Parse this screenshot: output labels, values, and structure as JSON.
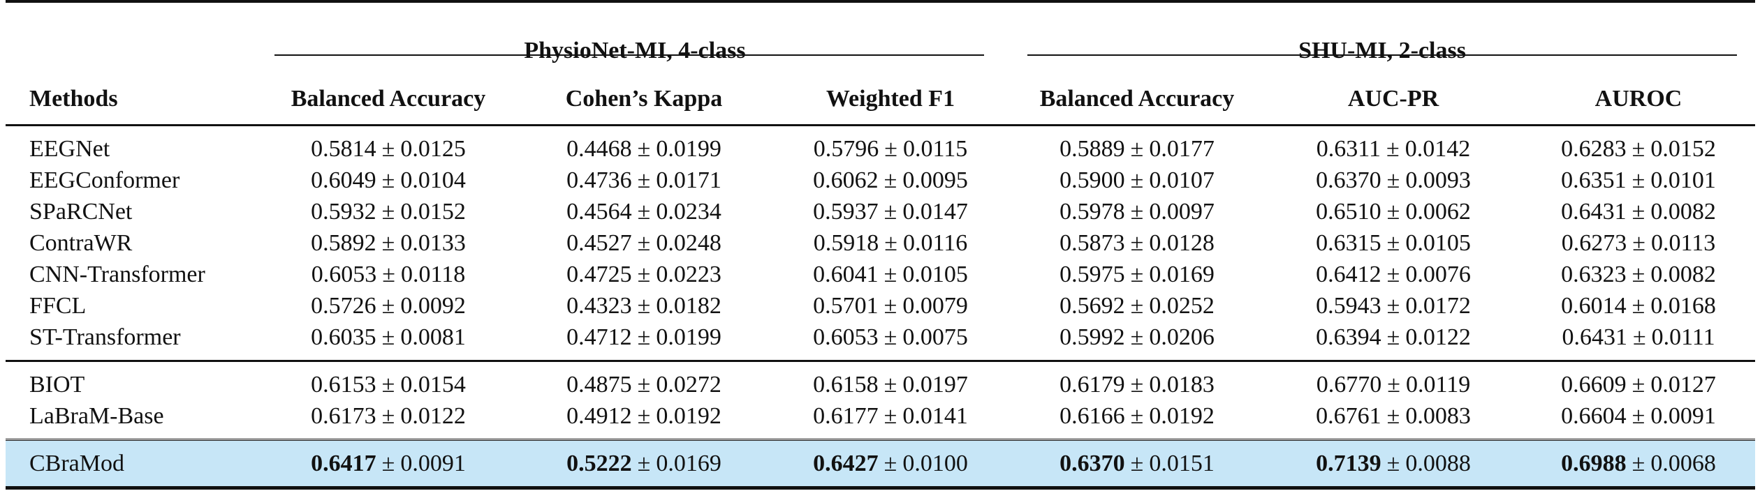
{
  "table": {
    "group_headers": [
      {
        "label": "PhysioNet-MI, 4-class"
      },
      {
        "label": "SHU-MI, 2-class"
      }
    ],
    "column_headers": [
      "Methods",
      "Balanced Accuracy",
      "Cohen’s Kappa",
      "Weighted F1",
      "Balanced Accuracy",
      "AUC-PR",
      "AUROC"
    ],
    "pm_symbol": "±",
    "rows": [
      {
        "method": "EEGNet",
        "group": 1,
        "cells": [
          {
            "mean": "0.5814",
            "std": "0.0125"
          },
          {
            "mean": "0.4468",
            "std": "0.0199"
          },
          {
            "mean": "0.5796",
            "std": "0.0115"
          },
          {
            "mean": "0.5889",
            "std": "0.0177"
          },
          {
            "mean": "0.6311",
            "std": "0.0142"
          },
          {
            "mean": "0.6283",
            "std": "0.0152"
          }
        ]
      },
      {
        "method": "EEGConformer",
        "group": 1,
        "cells": [
          {
            "mean": "0.6049",
            "std": "0.0104"
          },
          {
            "mean": "0.4736",
            "std": "0.0171"
          },
          {
            "mean": "0.6062",
            "std": "0.0095"
          },
          {
            "mean": "0.5900",
            "std": "0.0107"
          },
          {
            "mean": "0.6370",
            "std": "0.0093"
          },
          {
            "mean": "0.6351",
            "std": "0.0101"
          }
        ]
      },
      {
        "method": "SPaRCNet",
        "group": 1,
        "cells": [
          {
            "mean": "0.5932",
            "std": "0.0152"
          },
          {
            "mean": "0.4564",
            "std": "0.0234"
          },
          {
            "mean": "0.5937",
            "std": "0.0147"
          },
          {
            "mean": "0.5978",
            "std": "0.0097"
          },
          {
            "mean": "0.6510",
            "std": "0.0062"
          },
          {
            "mean": "0.6431",
            "std": "0.0082"
          }
        ]
      },
      {
        "method": "ContraWR",
        "group": 1,
        "cells": [
          {
            "mean": "0.5892",
            "std": "0.0133"
          },
          {
            "mean": "0.4527",
            "std": "0.0248"
          },
          {
            "mean": "0.5918",
            "std": "0.0116"
          },
          {
            "mean": "0.5873",
            "std": "0.0128"
          },
          {
            "mean": "0.6315",
            "std": "0.0105"
          },
          {
            "mean": "0.6273",
            "std": "0.0113"
          }
        ]
      },
      {
        "method": "CNN-Transformer",
        "group": 1,
        "cells": [
          {
            "mean": "0.6053",
            "std": "0.0118"
          },
          {
            "mean": "0.4725",
            "std": "0.0223"
          },
          {
            "mean": "0.6041",
            "std": "0.0105"
          },
          {
            "mean": "0.5975",
            "std": "0.0169"
          },
          {
            "mean": "0.6412",
            "std": "0.0076"
          },
          {
            "mean": "0.6323",
            "std": "0.0082"
          }
        ]
      },
      {
        "method": "FFCL",
        "group": 1,
        "cells": [
          {
            "mean": "0.5726",
            "std": "0.0092"
          },
          {
            "mean": "0.4323",
            "std": "0.0182"
          },
          {
            "mean": "0.5701",
            "std": "0.0079"
          },
          {
            "mean": "0.5692",
            "std": "0.0252"
          },
          {
            "mean": "0.5943",
            "std": "0.0172"
          },
          {
            "mean": "0.6014",
            "std": "0.0168"
          }
        ]
      },
      {
        "method": "ST-Transformer",
        "group": 1,
        "cells": [
          {
            "mean": "0.6035",
            "std": "0.0081"
          },
          {
            "mean": "0.4712",
            "std": "0.0199"
          },
          {
            "mean": "0.6053",
            "std": "0.0075"
          },
          {
            "mean": "0.5992",
            "std": "0.0206"
          },
          {
            "mean": "0.6394",
            "std": "0.0122"
          },
          {
            "mean": "0.6431",
            "std": "0.0111"
          }
        ]
      },
      {
        "method": "BIOT",
        "group": 2,
        "cells": [
          {
            "mean": "0.6153",
            "std": "0.0154"
          },
          {
            "mean": "0.4875",
            "std": "0.0272"
          },
          {
            "mean": "0.6158",
            "std": "0.0197"
          },
          {
            "mean": "0.6179",
            "std": "0.0183"
          },
          {
            "mean": "0.6770",
            "std": "0.0119"
          },
          {
            "mean": "0.6609",
            "std": "0.0127"
          }
        ]
      },
      {
        "method": "LaBraM-Base",
        "group": 2,
        "cells": [
          {
            "mean": "0.6173",
            "std": "0.0122"
          },
          {
            "mean": "0.4912",
            "std": "0.0192"
          },
          {
            "mean": "0.6177",
            "std": "0.0141"
          },
          {
            "mean": "0.6166",
            "std": "0.0192"
          },
          {
            "mean": "0.6761",
            "std": "0.0083"
          },
          {
            "mean": "0.6604",
            "std": "0.0091"
          }
        ]
      },
      {
        "method": "CBraMod",
        "group": 3,
        "highlight": true,
        "highlight_color": "#c7e6f7",
        "bold_means": true,
        "cells": [
          {
            "mean": "0.6417",
            "std": "0.0091"
          },
          {
            "mean": "0.5222",
            "std": "0.0169"
          },
          {
            "mean": "0.6427",
            "std": "0.0100"
          },
          {
            "mean": "0.6370",
            "std": "0.0151"
          },
          {
            "mean": "0.7139",
            "std": "0.0088"
          },
          {
            "mean": "0.6988",
            "std": "0.0068"
          }
        ]
      }
    ]
  }
}
